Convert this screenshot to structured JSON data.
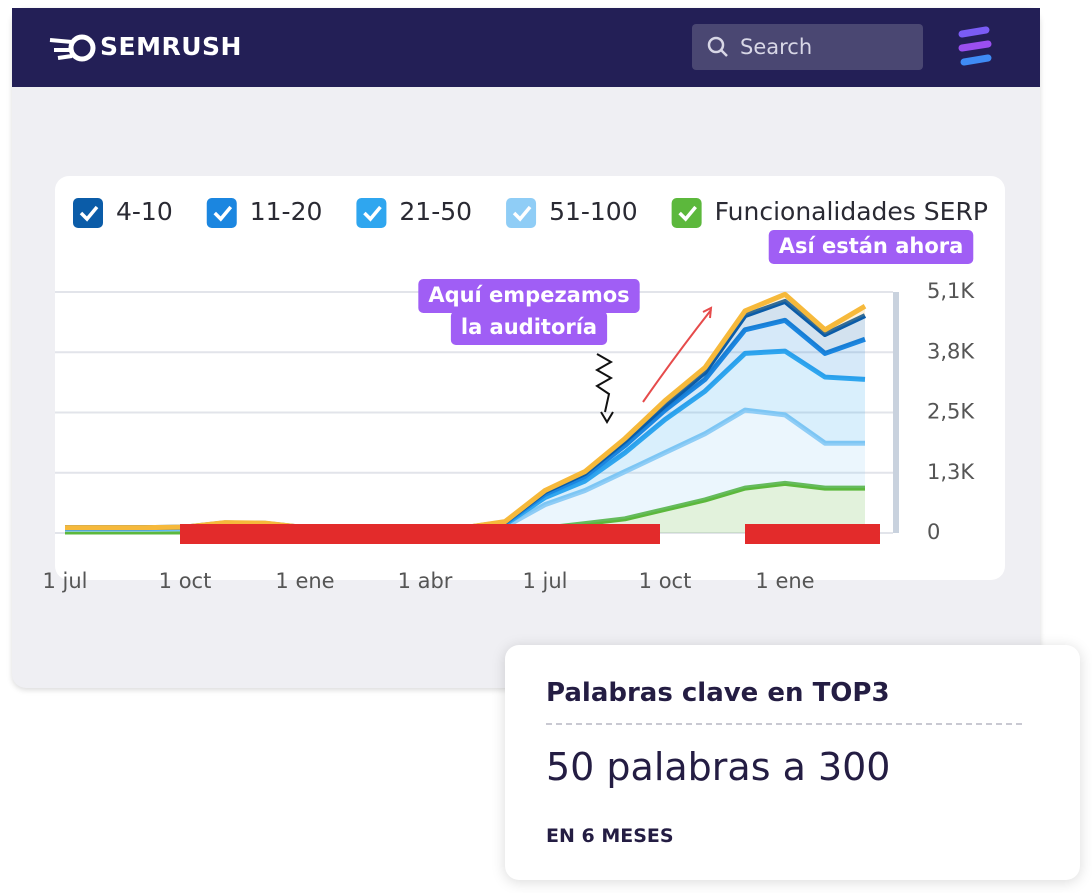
{
  "header": {
    "brand": "SEMRUSH",
    "search_placeholder": "Search"
  },
  "chart_data": {
    "type": "stacked-area",
    "categories": [
      "1 jul",
      null,
      null,
      "1 oct",
      null,
      null,
      "1 ene",
      null,
      null,
      "1 abr",
      null,
      null,
      "1 jul",
      null,
      null,
      "1 oct",
      null,
      null,
      "1 ene",
      null,
      null
    ],
    "series": [
      {
        "color": "#f6b93b",
        "values": [
          0,
          0,
          0,
          0,
          5,
          5,
          0,
          0,
          0,
          0,
          0,
          10,
          30,
          40,
          50,
          100,
          100,
          100,
          150,
          100,
          200
        ]
      },
      {
        "name": "4-10",
        "color": "#0b5ca8",
        "values": [
          5,
          5,
          5,
          5,
          10,
          10,
          5,
          5,
          5,
          5,
          5,
          20,
          50,
          60,
          100,
          100,
          150,
          300,
          400,
          400,
          500
        ]
      },
      {
        "name": "11-20",
        "color": "#1b86e0",
        "values": [
          10,
          10,
          10,
          10,
          20,
          20,
          10,
          10,
          10,
          10,
          10,
          30,
          70,
          100,
          150,
          200,
          250,
          500,
          650,
          500,
          850
        ]
      },
      {
        "name": "21-50",
        "color": "#2fa6ef",
        "values": [
          20,
          20,
          20,
          20,
          40,
          40,
          20,
          20,
          20,
          20,
          20,
          50,
          150,
          200,
          400,
          700,
          900,
          1200,
          1350,
          1400,
          1350
        ]
      },
      {
        "name": "51-100",
        "color": "#8fcdf6",
        "values": [
          60,
          60,
          60,
          70,
          120,
          110,
          60,
          60,
          60,
          60,
          60,
          100,
          500,
          700,
          1000,
          1200,
          1400,
          1650,
          1450,
          950,
          950
        ]
      },
      {
        "name": "Funcionalidades SERP",
        "color": "#5cb83c",
        "values": [
          20,
          20,
          20,
          20,
          25,
          25,
          20,
          20,
          20,
          20,
          20,
          30,
          100,
          200,
          300,
          500,
          700,
          950,
          1050,
          950,
          950
        ]
      }
    ],
    "ylim": [
      0,
      5100
    ],
    "yticks": [
      0,
      {
        "value": 1275,
        "label": "1,3K"
      },
      {
        "value": 2550,
        "label": "2,5K"
      },
      {
        "value": 3825,
        "label": "3,8K"
      },
      {
        "value": 5100,
        "label": "5,1K"
      }
    ],
    "grid": true,
    "annotations": {
      "start": [
        "Aquí empezamos",
        "la auditoría"
      ],
      "now": "Así están ahora"
    }
  },
  "card": {
    "title": "Palabras clave en TOP3",
    "result": "50 palabras a 300",
    "period": "EN 6 MESES"
  }
}
